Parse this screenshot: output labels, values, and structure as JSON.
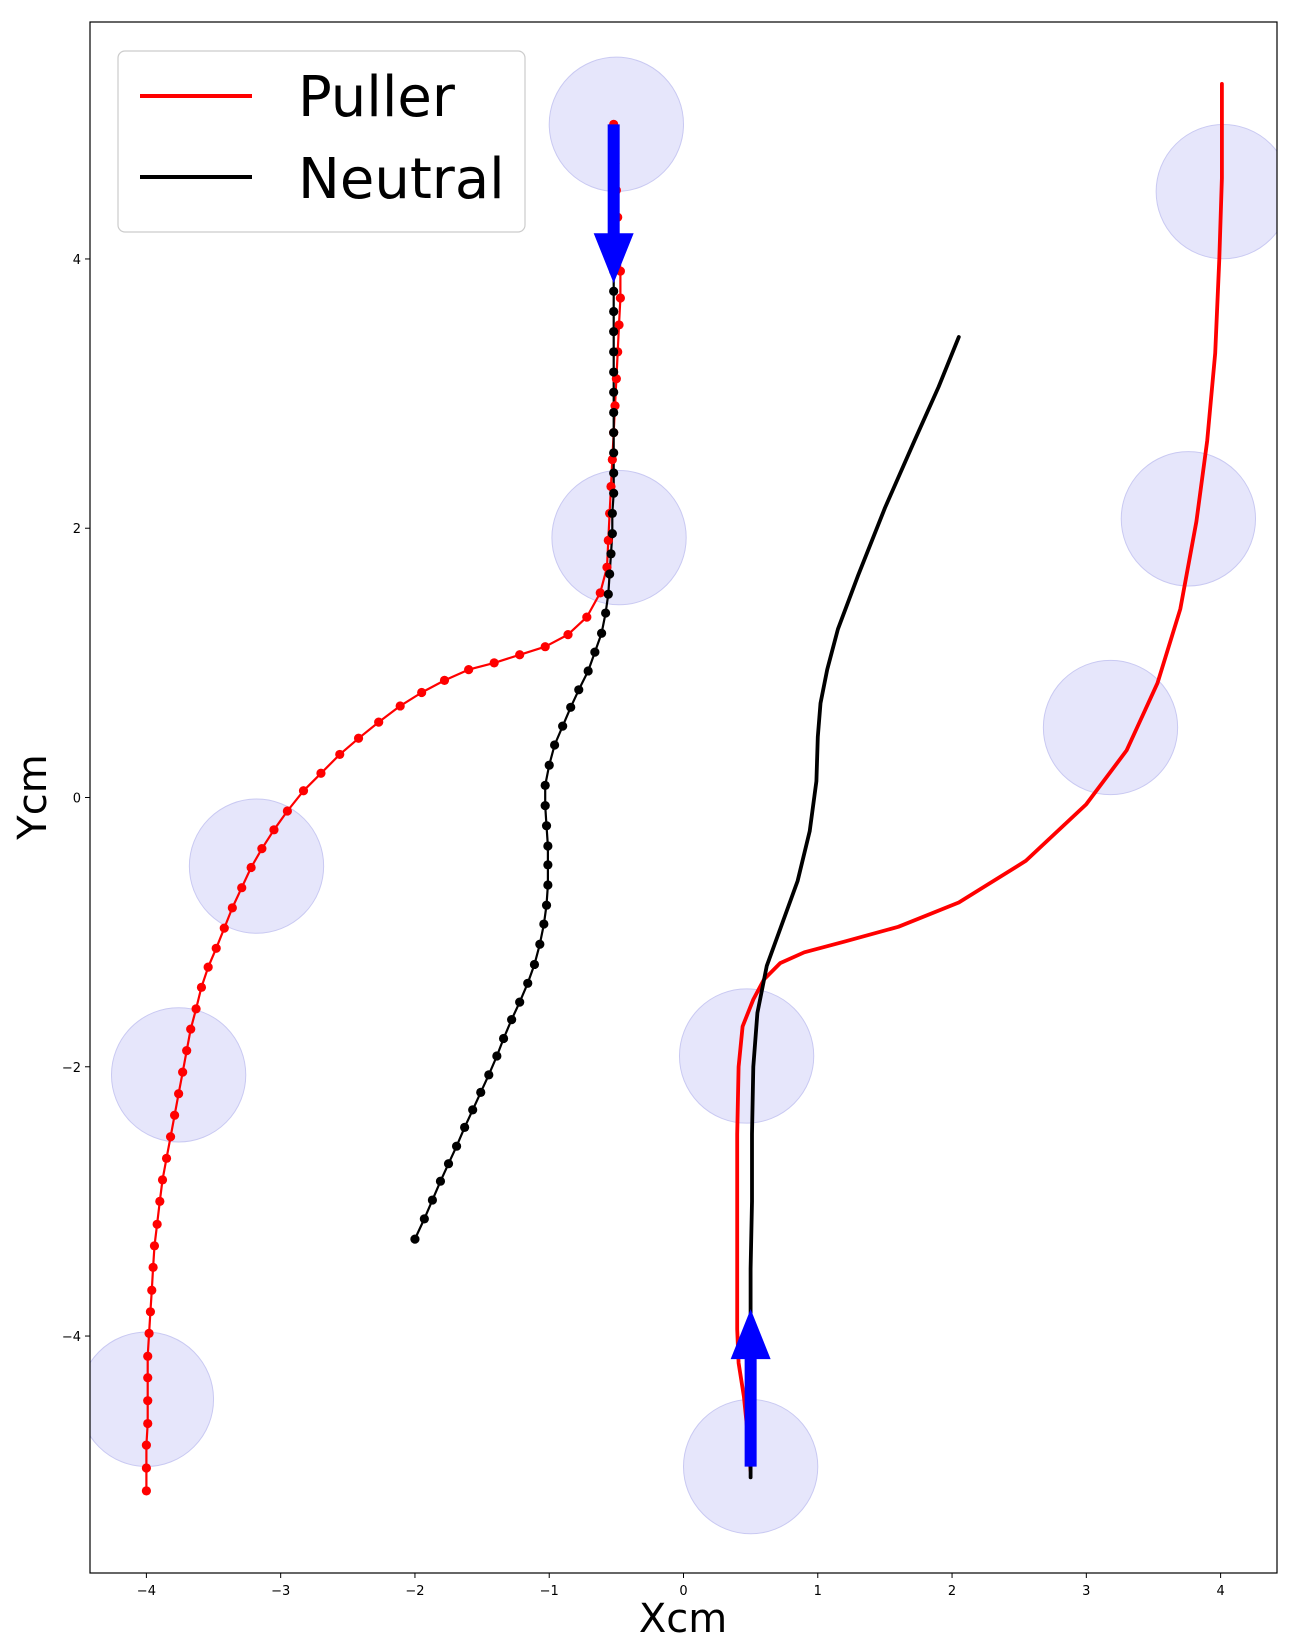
{
  "chart_data": {
    "type": "line",
    "title": "",
    "xlabel": "Xcm",
    "ylabel": "Ycm",
    "xlim": [
      -4.42,
      4.42
    ],
    "ylim": [
      -5.76,
      5.76
    ],
    "xticks": [
      -4,
      -3,
      -2,
      -1,
      0,
      1,
      2,
      3,
      4
    ],
    "yticks": [
      -4,
      -2,
      0,
      2,
      4
    ],
    "grid": false,
    "legend": {
      "placement": "top-left",
      "entries": [
        {
          "label": "Puller",
          "color": "#ff0000"
        },
        {
          "label": "Neutral",
          "color": "#000000"
        }
      ]
    },
    "obstacles": {
      "radius": 0.5,
      "color": "#e3e3fb",
      "edge": "#c9c9f2",
      "centers": [
        [
          -0.5,
          5.0
        ],
        [
          -0.48,
          1.93
        ],
        [
          -3.18,
          -0.51
        ],
        [
          -3.76,
          -2.06
        ],
        [
          -4.0,
          -4.47
        ],
        [
          0.47,
          -1.92
        ],
        [
          0.5,
          -4.97
        ],
        [
          4.02,
          4.5
        ],
        [
          3.76,
          2.07
        ],
        [
          3.18,
          0.52
        ]
      ]
    },
    "arrows": {
      "color": "#0000ff",
      "items": [
        {
          "from": [
            -0.52,
            5.0
          ],
          "to": [
            -0.52,
            3.82
          ]
        },
        {
          "from": [
            0.5,
            -4.97
          ],
          "to": [
            0.5,
            -3.8
          ]
        }
      ]
    },
    "series": [
      {
        "name": "Puller",
        "color": "#ff0000",
        "markers": true,
        "points": [
          [
            -4.0,
            -5.15
          ],
          [
            -4.0,
            -4.98
          ],
          [
            -4.0,
            -4.81
          ],
          [
            -3.99,
            -4.65
          ],
          [
            -3.99,
            -4.48
          ],
          [
            -3.99,
            -4.31
          ],
          [
            -3.99,
            -4.15
          ],
          [
            -3.98,
            -3.98
          ],
          [
            -3.97,
            -3.82
          ],
          [
            -3.96,
            -3.66
          ],
          [
            -3.95,
            -3.49
          ],
          [
            -3.94,
            -3.33
          ],
          [
            -3.92,
            -3.17
          ],
          [
            -3.9,
            -3.0
          ],
          [
            -3.88,
            -2.84
          ],
          [
            -3.85,
            -2.68
          ],
          [
            -3.82,
            -2.52
          ],
          [
            -3.79,
            -2.36
          ],
          [
            -3.76,
            -2.2
          ],
          [
            -3.73,
            -2.04
          ],
          [
            -3.7,
            -1.88
          ],
          [
            -3.67,
            -1.72
          ],
          [
            -3.63,
            -1.57
          ],
          [
            -3.59,
            -1.41
          ],
          [
            -3.54,
            -1.26
          ],
          [
            -3.48,
            -1.12
          ],
          [
            -3.42,
            -0.97
          ],
          [
            -3.36,
            -0.82
          ],
          [
            -3.29,
            -0.67
          ],
          [
            -3.22,
            -0.52
          ],
          [
            -3.14,
            -0.38
          ],
          [
            -3.05,
            -0.24
          ],
          [
            -2.95,
            -0.1
          ],
          [
            -2.83,
            0.05
          ],
          [
            -2.7,
            0.18
          ],
          [
            -2.56,
            0.32
          ],
          [
            -2.42,
            0.44
          ],
          [
            -2.27,
            0.56
          ],
          [
            -2.11,
            0.68
          ],
          [
            -1.95,
            0.78
          ],
          [
            -1.78,
            0.87
          ],
          [
            -1.6,
            0.95
          ],
          [
            -1.41,
            1.0
          ],
          [
            -1.22,
            1.06
          ],
          [
            -1.03,
            1.12
          ],
          [
            -0.86,
            1.21
          ],
          [
            -0.72,
            1.34
          ],
          [
            -0.62,
            1.52
          ],
          [
            -0.57,
            1.71
          ],
          [
            -0.56,
            1.91
          ],
          [
            -0.55,
            2.11
          ],
          [
            -0.54,
            2.31
          ],
          [
            -0.53,
            2.51
          ],
          [
            -0.52,
            2.71
          ],
          [
            -0.51,
            2.91
          ],
          [
            -0.5,
            3.11
          ],
          [
            -0.49,
            3.31
          ],
          [
            -0.48,
            3.51
          ],
          [
            -0.47,
            3.71
          ],
          [
            -0.47,
            3.91
          ],
          [
            -0.48,
            4.11
          ],
          [
            -0.49,
            4.31
          ],
          [
            -0.5,
            4.51
          ],
          [
            -0.51,
            4.71
          ],
          [
            -0.52,
            4.91
          ],
          [
            -0.52,
            5.0
          ]
        ]
      },
      {
        "name": "Neutral",
        "color": "#000000",
        "markers": true,
        "points": [
          [
            -2.0,
            -3.28
          ],
          [
            -1.93,
            -3.13
          ],
          [
            -1.87,
            -2.99
          ],
          [
            -1.81,
            -2.85
          ],
          [
            -1.75,
            -2.72
          ],
          [
            -1.69,
            -2.59
          ],
          [
            -1.63,
            -2.45
          ],
          [
            -1.57,
            -2.32
          ],
          [
            -1.51,
            -2.19
          ],
          [
            -1.45,
            -2.06
          ],
          [
            -1.39,
            -1.92
          ],
          [
            -1.34,
            -1.79
          ],
          [
            -1.28,
            -1.65
          ],
          [
            -1.22,
            -1.52
          ],
          [
            -1.16,
            -1.38
          ],
          [
            -1.11,
            -1.24
          ],
          [
            -1.07,
            -1.09
          ],
          [
            -1.04,
            -0.94
          ],
          [
            -1.02,
            -0.8
          ],
          [
            -1.01,
            -0.65
          ],
          [
            -1.01,
            -0.5
          ],
          [
            -1.01,
            -0.36
          ],
          [
            -1.02,
            -0.21
          ],
          [
            -1.03,
            -0.06
          ],
          [
            -1.03,
            0.09
          ],
          [
            -1.0,
            0.24
          ],
          [
            -0.96,
            0.39
          ],
          [
            -0.9,
            0.53
          ],
          [
            -0.84,
            0.67
          ],
          [
            -0.78,
            0.8
          ],
          [
            -0.71,
            0.94
          ],
          [
            -0.66,
            1.08
          ],
          [
            -0.61,
            1.22
          ],
          [
            -0.58,
            1.37
          ],
          [
            -0.56,
            1.51
          ],
          [
            -0.55,
            1.66
          ],
          [
            -0.54,
            1.81
          ],
          [
            -0.53,
            1.96
          ],
          [
            -0.53,
            2.11
          ],
          [
            -0.52,
            2.26
          ],
          [
            -0.52,
            2.41
          ],
          [
            -0.52,
            2.56
          ],
          [
            -0.52,
            2.71
          ],
          [
            -0.52,
            2.86
          ],
          [
            -0.52,
            3.01
          ],
          [
            -0.52,
            3.16
          ],
          [
            -0.52,
            3.31
          ],
          [
            -0.52,
            3.46
          ],
          [
            -0.52,
            3.61
          ],
          [
            -0.52,
            3.76
          ],
          [
            -0.52,
            3.91
          ],
          [
            -0.52,
            4.06
          ],
          [
            -0.52,
            4.21
          ],
          [
            -0.52,
            4.36
          ],
          [
            -0.52,
            4.51
          ],
          [
            -0.52,
            4.66
          ],
          [
            -0.52,
            4.81
          ],
          [
            -0.52,
            4.96
          ]
        ]
      },
      {
        "name": "Puller",
        "color": "#ff0000",
        "markers": false,
        "points": [
          [
            0.5,
            -5.0
          ],
          [
            0.48,
            -4.75
          ],
          [
            0.45,
            -4.45
          ],
          [
            0.41,
            -4.2
          ],
          [
            0.4,
            -3.95
          ],
          [
            0.4,
            -3.5
          ],
          [
            0.4,
            -3.0
          ],
          [
            0.4,
            -2.5
          ],
          [
            0.41,
            -2.0
          ],
          [
            0.44,
            -1.7
          ],
          [
            0.52,
            -1.5
          ],
          [
            0.6,
            -1.35
          ],
          [
            0.72,
            -1.23
          ],
          [
            0.9,
            -1.15
          ],
          [
            1.2,
            -1.07
          ],
          [
            1.6,
            -0.96
          ],
          [
            2.05,
            -0.78
          ],
          [
            2.55,
            -0.47
          ],
          [
            3.0,
            -0.05
          ],
          [
            3.3,
            0.35
          ],
          [
            3.53,
            0.85
          ],
          [
            3.7,
            1.4
          ],
          [
            3.82,
            2.05
          ],
          [
            3.9,
            2.65
          ],
          [
            3.96,
            3.3
          ],
          [
            3.99,
            4.0
          ],
          [
            4.01,
            4.6
          ],
          [
            4.01,
            5.3
          ]
        ]
      },
      {
        "name": "Neutral",
        "color": "#000000",
        "markers": false,
        "points": [
          [
            0.5,
            -5.05
          ],
          [
            0.5,
            -4.8
          ],
          [
            0.5,
            -4.5
          ],
          [
            0.5,
            -4.0
          ],
          [
            0.5,
            -3.5
          ],
          [
            0.51,
            -3.0
          ],
          [
            0.51,
            -2.5
          ],
          [
            0.52,
            -2.0
          ],
          [
            0.55,
            -1.6
          ],
          [
            0.62,
            -1.25
          ],
          [
            0.73,
            -0.95
          ],
          [
            0.85,
            -0.62
          ],
          [
            0.94,
            -0.25
          ],
          [
            0.99,
            0.12
          ],
          [
            1.0,
            0.45
          ],
          [
            1.02,
            0.7
          ],
          [
            1.07,
            0.95
          ],
          [
            1.15,
            1.25
          ],
          [
            1.3,
            1.65
          ],
          [
            1.5,
            2.15
          ],
          [
            1.72,
            2.65
          ],
          [
            1.9,
            3.05
          ],
          [
            2.05,
            3.42
          ]
        ]
      }
    ]
  }
}
